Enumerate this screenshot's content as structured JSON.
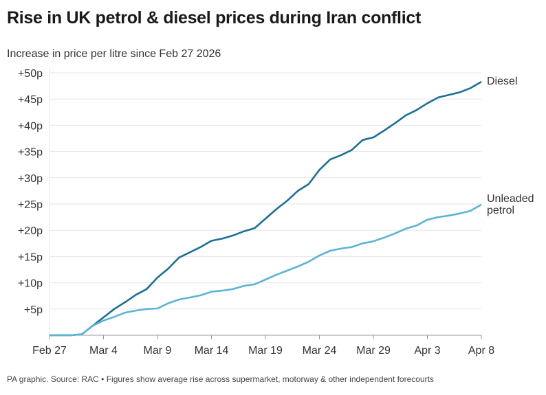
{
  "title": "Rise in UK petrol & diesel prices during Iran conflict",
  "subtitle": "Increase in price per litre since Feb 27 2026",
  "footer": "PA graphic. Source: RAC • Figures show average rise across supermarket, motorway & other independent forecourts",
  "chart_data": {
    "type": "line",
    "title": "Rise in UK petrol & diesel prices during Iran conflict",
    "ylabel": "Increase in price per litre since Feb 27 2026",
    "xlabel": "",
    "ylim": [
      0,
      50
    ],
    "grid": true,
    "legend": "direct labels at line ends",
    "x_ticks": [
      "Feb 27",
      "Mar 4",
      "Mar 9",
      "Mar 14",
      "Mar 19",
      "Mar 24",
      "Mar 29",
      "Apr 3",
      "Apr 8"
    ],
    "y_ticks": [
      "+5p",
      "+10p",
      "+15p",
      "+20p",
      "+25p",
      "+30p",
      "+35p",
      "+40p",
      "+45p",
      "+50p"
    ],
    "y_tick_values": [
      5,
      10,
      15,
      20,
      25,
      30,
      35,
      40,
      45,
      50
    ],
    "x": [
      "Feb 27",
      "Feb 28",
      "Mar 1",
      "Mar 2",
      "Mar 3",
      "Mar 4",
      "Mar 5",
      "Mar 6",
      "Mar 7",
      "Mar 8",
      "Mar 9",
      "Mar 10",
      "Mar 11",
      "Mar 12",
      "Mar 13",
      "Mar 14",
      "Mar 15",
      "Mar 16",
      "Mar 17",
      "Mar 18",
      "Mar 19",
      "Mar 20",
      "Mar 21",
      "Mar 22",
      "Mar 23",
      "Mar 24",
      "Mar 25",
      "Mar 26",
      "Mar 27",
      "Mar 28",
      "Mar 29",
      "Mar 30",
      "Mar 31",
      "Apr 1",
      "Apr 2",
      "Apr 3",
      "Apr 4",
      "Apr 5",
      "Apr 6",
      "Apr 7",
      "Apr 8"
    ],
    "series": [
      {
        "name": "Diesel",
        "label_lines": [
          "Diesel"
        ],
        "color": "#1a6f98",
        "values": [
          0,
          0,
          0,
          0.2,
          1.8,
          3.4,
          5,
          6.3,
          7.7,
          8.8,
          11,
          12.7,
          14.8,
          15.8,
          16.8,
          18,
          18.4,
          19,
          19.8,
          20.4,
          22.2,
          24,
          25.6,
          27.5,
          28.8,
          31.5,
          33.5,
          34.3,
          35.3,
          37.2,
          37.7,
          39,
          40.4,
          41.9,
          42.9,
          44.2,
          45.3,
          45.8,
          46.3,
          47.1,
          48.3
        ]
      },
      {
        "name": "Unleaded petrol",
        "label_lines": [
          "Unleaded",
          "petrol"
        ],
        "color": "#5bb3d5",
        "values": [
          0,
          0,
          0,
          0.2,
          1.8,
          2.8,
          3.5,
          4.3,
          4.7,
          5,
          5.1,
          6.1,
          6.8,
          7.2,
          7.6,
          8.3,
          8.5,
          8.8,
          9.4,
          9.7,
          10.6,
          11.5,
          12.3,
          13.1,
          14,
          15.2,
          16.1,
          16.5,
          16.8,
          17.5,
          17.9,
          18.6,
          19.4,
          20.3,
          20.9,
          22,
          22.5,
          22.8,
          23.2,
          23.7,
          24.9
        ]
      }
    ]
  }
}
